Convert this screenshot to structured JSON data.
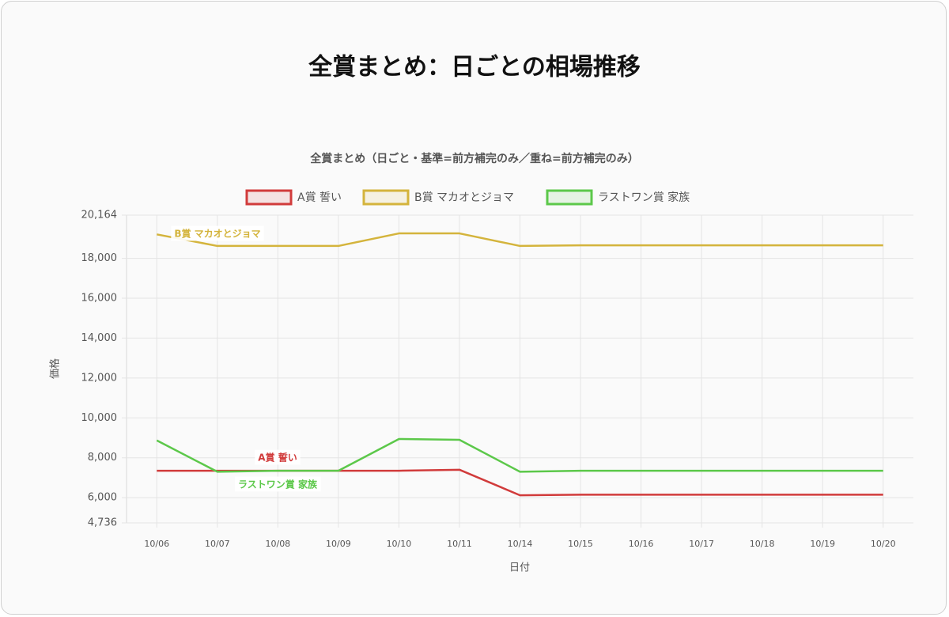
{
  "chart_data": {
    "type": "line",
    "title": "全賞まとめ：日ごとの相場推移",
    "subtitle": "全賞まとめ（日ごと・基準=前方補完のみ／重ね=前方補完のみ）",
    "x_label": "日付",
    "y_label": "価格",
    "categories": [
      "10/06",
      "10/07",
      "10/08",
      "10/09",
      "10/10",
      "10/11",
      "10/14",
      "10/15",
      "10/16",
      "10/17",
      "10/18",
      "10/19",
      "10/20"
    ],
    "series": [
      {
        "name": "A賞 誓い",
        "color": "#d13b3b",
        "values": [
          7350,
          7350,
          7350,
          7350,
          7350,
          7400,
          6120,
          6150,
          6150,
          6150,
          6150,
          6150,
          6150
        ]
      },
      {
        "name": "B賞 マカオとジョマ",
        "color": "#d4b43c",
        "values": [
          19200,
          18620,
          18620,
          18620,
          19250,
          19250,
          18620,
          18650,
          18650,
          18650,
          18650,
          18650,
          18650
        ]
      },
      {
        "name": "ラストワン賞 家族",
        "color": "#5cc84a",
        "values": [
          8870,
          7300,
          7350,
          7350,
          8940,
          8900,
          7300,
          7350,
          7350,
          7350,
          7350,
          7350,
          7350
        ]
      }
    ],
    "ylim": [
      4736,
      20164
    ],
    "yticks": [
      {
        "value": 4736,
        "label": "4,736"
      },
      {
        "value": 6000,
        "label": "6,000"
      },
      {
        "value": 8000,
        "label": "8,000"
      },
      {
        "value": 10000,
        "label": "10,000"
      },
      {
        "value": 12000,
        "label": "12,000"
      },
      {
        "value": 14000,
        "label": "14,000"
      },
      {
        "value": 16000,
        "label": "16,000"
      },
      {
        "value": 18000,
        "label": "18,000"
      },
      {
        "value": 20164,
        "label": "20,164"
      }
    ],
    "grid": true,
    "legend": "top"
  }
}
